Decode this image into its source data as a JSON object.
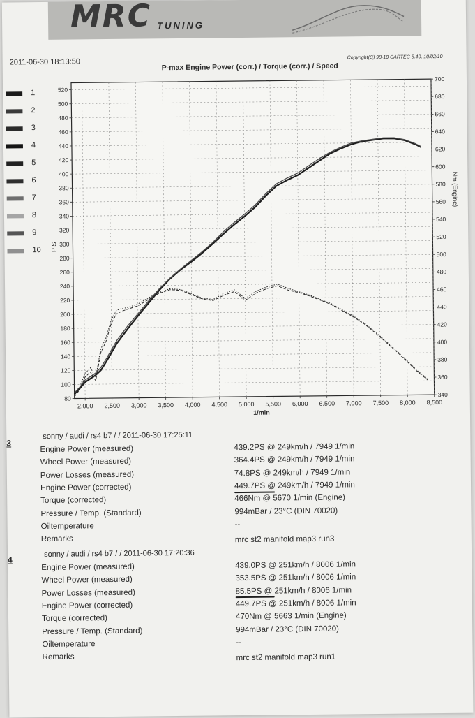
{
  "header": {
    "logo_text": "MRC",
    "logo_sub": "TUNING",
    "timestamp": "2011-06-30 18:13:50",
    "copyright": "Copyright(C) 98-10 CARTEC 5.40, 10/02/10",
    "chart_title": "P-max Engine Power (corr.) / Torque (corr.) / Speed"
  },
  "legend": {
    "items": [
      {
        "label": "1",
        "color": "#1a1a1a"
      },
      {
        "label": "2",
        "color": "#3a3a3a"
      },
      {
        "label": "3",
        "color": "#2a2a2a"
      },
      {
        "label": "4",
        "color": "#141414"
      },
      {
        "label": "5",
        "color": "#222222"
      },
      {
        "label": "6",
        "color": "#2e2e2e"
      },
      {
        "label": "7",
        "color": "#6e6e6e"
      },
      {
        "label": "8",
        "color": "#a5a5a5"
      },
      {
        "label": "9",
        "color": "#555555"
      },
      {
        "label": "10",
        "color": "#909090"
      }
    ]
  },
  "chart_data": {
    "type": "line",
    "title": "P-max Engine Power (corr.) / Torque (corr.) / Speed",
    "xlabel": "1/min",
    "ylabel": "P S",
    "y2label": "Nm (Engine)",
    "xlim": [
      1800,
      8500
    ],
    "ylim": [
      80,
      530
    ],
    "y2lim": [
      340,
      700
    ],
    "x_ticks": [
      2000,
      2500,
      3000,
      3500,
      4000,
      4500,
      5000,
      5500,
      6000,
      6500,
      7000,
      7500,
      8000,
      8500
    ],
    "x_tick_labels": [
      "2,000",
      "2,500",
      "3,000",
      "3,500",
      "4,000",
      "4,500",
      "5,000",
      "5,500",
      "6,000",
      "6,500",
      "7,000",
      "7,500",
      "8,000",
      "8,500"
    ],
    "y_ticks": [
      80,
      100,
      120,
      140,
      160,
      180,
      200,
      220,
      240,
      260,
      280,
      300,
      320,
      340,
      360,
      380,
      400,
      420,
      440,
      460,
      480,
      500,
      520
    ],
    "y2_ticks": [
      340,
      360,
      380,
      400,
      420,
      440,
      460,
      480,
      500,
      520,
      540,
      560,
      580,
      600,
      620,
      640,
      660,
      680,
      700
    ],
    "grid": true,
    "series": [
      {
        "axis": "left",
        "style": "solid",
        "color": "#1e1e1e",
        "width": 2.2,
        "x": [
          1800,
          1900,
          2000,
          2100,
          2200,
          2300,
          2400,
          2500,
          2600,
          2800,
          3000,
          3200,
          3400,
          3600,
          3800,
          4000,
          4200,
          4400,
          4600,
          4800,
          5000,
          5200,
          5400,
          5600,
          5800,
          6000,
          6200,
          6400,
          6600,
          6800,
          7000,
          7200,
          7400,
          7600,
          7800,
          8000,
          8200,
          8300
        ],
        "y": [
          86,
          94,
          103,
          108,
          113,
          120,
          132,
          145,
          158,
          178,
          197,
          215,
          233,
          249,
          262,
          273,
          285,
          298,
          312,
          325,
          337,
          350,
          366,
          380,
          388,
          395,
          405,
          415,
          425,
          432,
          438,
          442,
          444,
          446,
          446,
          443,
          437,
          433
        ]
      },
      {
        "axis": "left",
        "style": "solid",
        "color": "#4a4a4a",
        "width": 1.3,
        "x": [
          1800,
          1900,
          2000,
          2100,
          2200,
          2300,
          2400,
          2500,
          2600,
          2800,
          3000,
          3200,
          3400,
          3600,
          3800,
          4000,
          4200,
          4400,
          4600,
          4800,
          5000,
          5200,
          5400,
          5600,
          5800,
          6000,
          6200,
          6400,
          6600,
          6800,
          7000,
          7200,
          7400,
          7600,
          7800,
          8000,
          8200,
          8300
        ],
        "y": [
          88,
          96,
          106,
          111,
          116,
          124,
          136,
          149,
          162,
          182,
          200,
          218,
          235,
          250,
          263,
          275,
          287,
          300,
          315,
          328,
          340,
          353,
          369,
          383,
          391,
          398,
          408,
          418,
          427,
          434,
          440,
          443,
          445,
          447,
          447,
          444,
          438,
          434
        ]
      },
      {
        "axis": "right",
        "style": "dashed",
        "color": "#2a2a2a",
        "width": 1.0,
        "x": [
          1800,
          1900,
          2000,
          2100,
          2200,
          2300,
          2400,
          2500,
          2600,
          2700,
          2800,
          3000,
          3200,
          3400,
          3600,
          3800,
          4000,
          4200,
          4400,
          4600,
          4800,
          5000,
          5200,
          5400,
          5600,
          5800,
          6000,
          6200,
          6400,
          6600,
          6800,
          7000,
          7200,
          7400,
          7600,
          7800,
          8000,
          8200,
          8400
        ],
        "y": [
          342,
          350,
          364,
          370,
          360,
          392,
          405,
          425,
          436,
          439,
          441,
          445,
          452,
          459,
          463,
          462,
          457,
          452,
          450,
          456,
          460,
          450,
          458,
          463,
          466,
          461,
          458,
          454,
          449,
          444,
          437,
          430,
          422,
          412,
          401,
          390,
          378,
          366,
          356
        ]
      },
      {
        "axis": "right",
        "style": "dotted",
        "color": "#2a2a2a",
        "width": 1.0,
        "x": [
          1800,
          1900,
          2000,
          2100,
          2200,
          2300,
          2400,
          2500,
          2600,
          2700,
          2800,
          3000,
          3200,
          3400,
          3600,
          3800,
          4000,
          4200,
          4400,
          4600,
          4800,
          5000,
          5200,
          5400,
          5600,
          5800,
          6000,
          6200,
          6400,
          6600,
          6800,
          7000,
          7200,
          7400,
          7600,
          7800,
          8000,
          8200,
          8400
        ],
        "y": [
          344,
          353,
          368,
          375,
          364,
          396,
          409,
          429,
          440,
          442,
          443,
          447,
          454,
          460,
          464,
          463,
          458,
          453,
          451,
          458,
          462,
          452,
          460,
          465,
          468,
          463,
          459,
          455,
          450,
          445,
          438,
          431,
          423,
          413,
          402,
          391,
          379,
          367,
          357
        ]
      }
    ]
  },
  "runs": [
    {
      "number": "3",
      "header": "sonny / audi / rs4 b7 /  / 2011-06-30 17:25:11",
      "rows": [
        {
          "k": "Engine Power (measured)",
          "v": "439.2PS @ 249km/h / 7949 1/min"
        },
        {
          "k": "Wheel Power (measured)",
          "v": "364.4PS @ 249km/h / 7949 1/min"
        },
        {
          "k": "Power Losses (measured)",
          "v": "74.8PS @ 249km/h / 7949 1/min"
        },
        {
          "k": "Engine Power (corrected)",
          "v": "449.7PS @ 249km/h / 7949 1/min"
        },
        {
          "k": "Torque (corrected)",
          "v": "466Nm @ 5670 1/min (Engine)"
        },
        {
          "k": "Pressure / Temp. (Standard)",
          "v": "994mBar / 23°C    (DIN 70020)"
        },
        {
          "k": "Oiltemperature",
          "v": "--"
        },
        {
          "k": "Remarks",
          "v": "mrc st2 manifold map3 run3"
        }
      ]
    },
    {
      "number": "4",
      "header": "sonny / audi / rs4 b7 /  / 2011-06-30 17:20:36",
      "rows": [
        {
          "k": "Engine Power (measured)",
          "v": "439.0PS @ 251km/h / 8006 1/min"
        },
        {
          "k": "Wheel Power (measured)",
          "v": "353.5PS @ 251km/h / 8006 1/min"
        },
        {
          "k": "Power Losses (measured)",
          "v": "85.5PS @ 251km/h / 8006 1/min"
        },
        {
          "k": "Engine Power (corrected)",
          "v": "449.7PS @ 251km/h / 8006 1/min"
        },
        {
          "k": "Torque (corrected)",
          "v": "470Nm @ 5663 1/min (Engine)"
        },
        {
          "k": "Pressure / Temp. (Standard)",
          "v": "994mBar / 23°C    (DIN 70020)"
        },
        {
          "k": "Oiltemperature",
          "v": "--"
        },
        {
          "k": "Remarks",
          "v": "mrc st2 manifold map3 run1"
        }
      ]
    }
  ]
}
